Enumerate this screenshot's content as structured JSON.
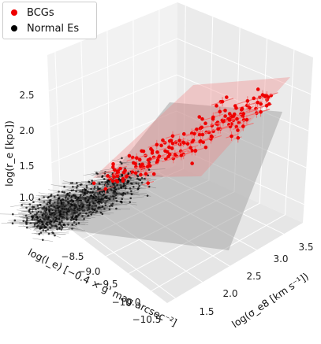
{
  "chart_data": {
    "type": "scatter",
    "projection": "3d",
    "legend": {
      "placement": "top-left",
      "entries": [
        {
          "label": "BCGs",
          "color": "#ee0000"
        },
        {
          "label": "Normal Es",
          "color": "#000000"
        }
      ]
    },
    "axes": {
      "x": {
        "label": "log(I_e) [−0.4 × g' mag arcsec⁻²]",
        "ticks": [
          "−8.5",
          "−9.0",
          "−9.5",
          "−10.0",
          "−10.5"
        ]
      },
      "y": {
        "label": "log(σ_e8 [km s⁻¹])",
        "ticks": [
          "1.5",
          "2.0",
          "2.5",
          "3.0",
          "3.5"
        ]
      },
      "z": {
        "label": "log(r_e [kpc])",
        "ticks": [
          "1.0",
          "1.5",
          "2.0",
          "2.5"
        ]
      }
    },
    "series": [
      {
        "name": "BCGs",
        "color": "#ee0000",
        "points": 180,
        "x_range": [
          -10.2,
          -8.6
        ],
        "y_range": [
          2.3,
          2.7
        ],
        "z_range": [
          1.4,
          2.5
        ]
      },
      {
        "name": "Normal Es",
        "color": "#000000",
        "points": 900,
        "x_range": [
          -10.5,
          -8.3
        ],
        "y_range": [
          2.0,
          2.5
        ],
        "z_range": [
          0.8,
          1.5
        ]
      }
    ],
    "planes": [
      {
        "name": "BCGs",
        "color": "#f08080"
      },
      {
        "name": "Normal Es",
        "color": "#999999"
      }
    ],
    "grid": true
  }
}
